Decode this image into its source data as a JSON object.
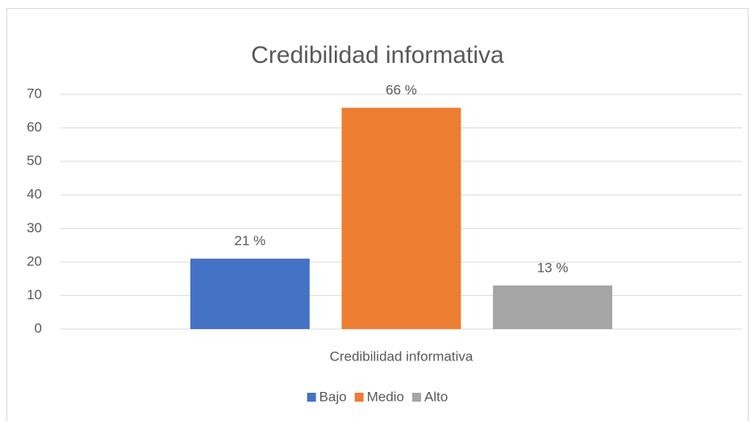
{
  "chart_data": {
    "type": "bar",
    "title": "Credibilidad informativa",
    "categories": [
      "Credibilidad informativa"
    ],
    "series": [
      {
        "name": "Bajo",
        "color": "#4472c4",
        "values": [
          21
        ],
        "value_labels": [
          "21 %"
        ]
      },
      {
        "name": "Medio",
        "color": "#ed7d31",
        "values": [
          66
        ],
        "value_labels": [
          "66 %"
        ]
      },
      {
        "name": "Alto",
        "color": "#a5a5a5",
        "values": [
          13
        ],
        "value_labels": [
          "13 %"
        ]
      }
    ],
    "ylim": [
      0,
      70
    ],
    "yticks": [
      0,
      10,
      20,
      30,
      40,
      50,
      60,
      70
    ],
    "grid": true,
    "legend": "bottom"
  }
}
